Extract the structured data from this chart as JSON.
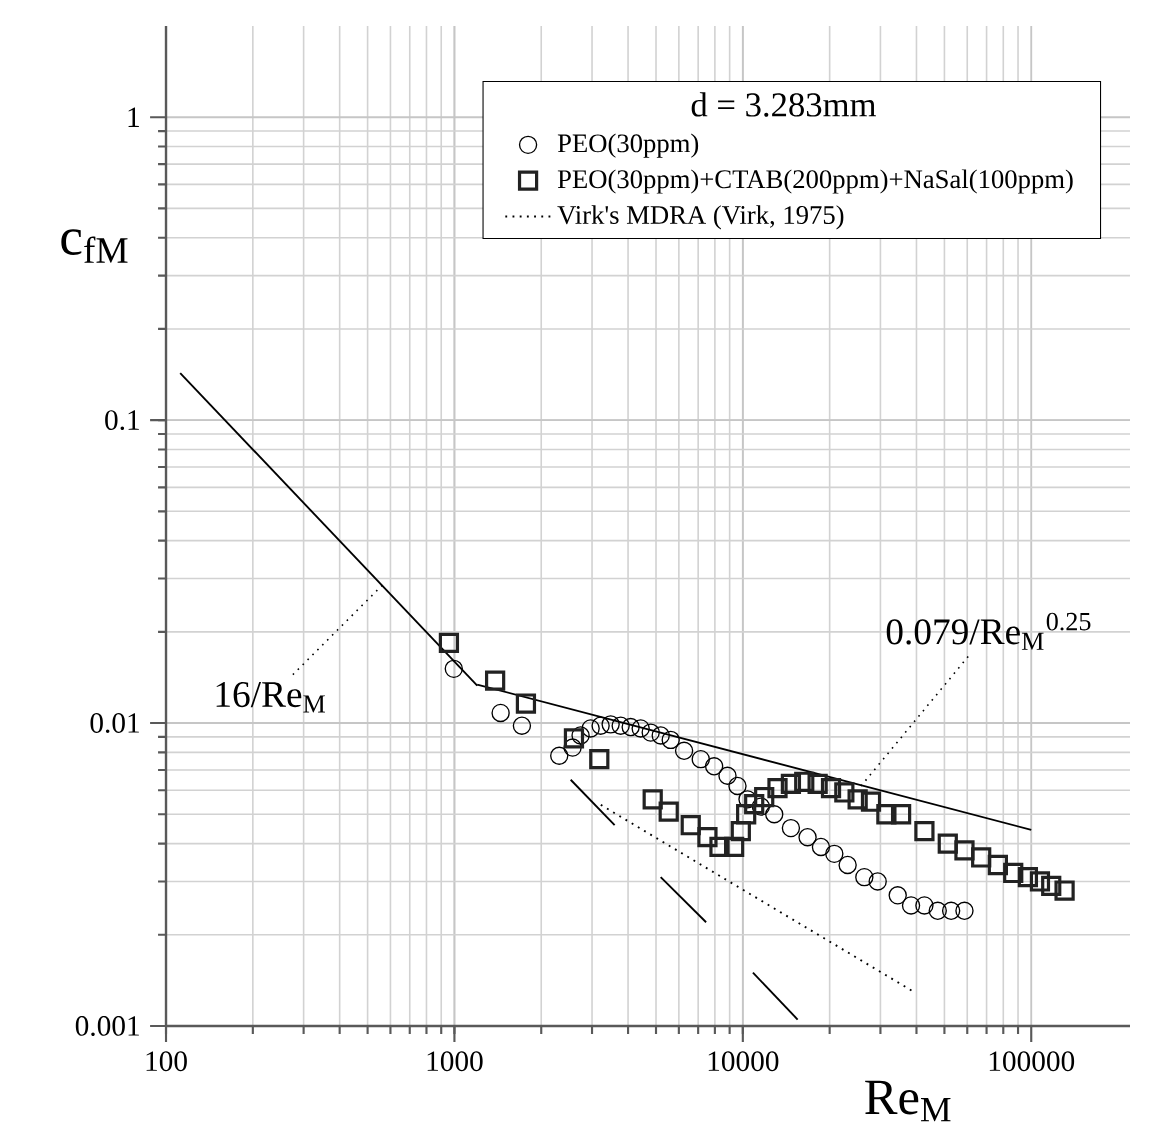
{
  "chart_data": {
    "type": "scatter",
    "xlabel": "Re$_{M}$",
    "ylabel": "c$_{fM}$",
    "legend_title": "d = 3.283mm",
    "log": "xy",
    "grid": true,
    "legend": "top right",
    "xlim": [
      100,
      220000
    ],
    "ylim": [
      0.001,
      2
    ],
    "xticks": [
      100,
      1000,
      10000,
      100000
    ],
    "yticks": [
      0.001,
      0.01,
      0.1,
      1
    ],
    "series": [
      {
        "name": "PEO(30ppm)",
        "marker": "circle",
        "color": "#000000",
        "x": [
          995,
          1446,
          1714,
          2309,
          2569,
          2738,
          2967,
          3213,
          3481,
          3771,
          4084,
          4424,
          4793,
          5192,
          5623,
          6257,
          7148,
          7952,
          8847,
          9583,
          10380,
          11550,
          12850,
          14680,
          16770,
          18660,
          20760,
          23090,
          26380,
          29350,
          34440,
          38310,
          42620,
          47410,
          52760,
          58680
        ],
        "values": [
          0.0151,
          0.0108,
          0.0098,
          0.0078,
          0.0083,
          0.0091,
          0.0096,
          0.0098,
          0.0099,
          0.0098,
          0.0097,
          0.0096,
          0.0093,
          0.0091,
          0.0088,
          0.0081,
          0.0076,
          0.0072,
          0.0067,
          0.0062,
          0.0056,
          0.0053,
          0.005,
          0.0045,
          0.0042,
          0.0039,
          0.0037,
          0.0034,
          0.0031,
          0.003,
          0.0027,
          0.0025,
          0.0025,
          0.0024,
          0.0024,
          0.0024
        ]
      },
      {
        "name": "PEO(30ppm)+CTAB(200ppm)+NaSal(100ppm)",
        "marker": "square",
        "color": "#222222",
        "x": [
          957,
          1384,
          1770,
          2597,
          3179,
          4870,
          5534,
          6598,
          7540,
          8300,
          9330,
          9840,
          10270,
          10950,
          11860,
          13190,
          14680,
          16330,
          18170,
          20220,
          22490,
          25010,
          27820,
          31460,
          35380,
          42620,
          51360,
          58680,
          67060,
          76620,
          86600,
          97360,
          107200,
          117300,
          130500
        ],
        "values": [
          0.0184,
          0.0138,
          0.0116,
          0.0089,
          0.0076,
          0.0056,
          0.0051,
          0.0046,
          0.0042,
          0.0039,
          0.0039,
          0.0044,
          0.005,
          0.0054,
          0.0057,
          0.0061,
          0.0063,
          0.0064,
          0.0063,
          0.0061,
          0.0059,
          0.0056,
          0.0055,
          0.005,
          0.005,
          0.0044,
          0.004,
          0.0038,
          0.0036,
          0.0034,
          0.0032,
          0.0031,
          0.003,
          0.0029,
          0.0028
        ]
      },
      {
        "name": "Virk's MDRA (Virk, 1975)",
        "type": "line",
        "line_style": "dotted",
        "color": "#000000",
        "x": [
          3218,
          39500
        ],
        "values": [
          0.00537,
          0.00129
        ]
      },
      {
        "type": "line",
        "line_style": "solid",
        "color": "#000000",
        "x": [
          112,
          1200
        ],
        "values": [
          0.143,
          0.0133
        ]
      },
      {
        "type": "line",
        "line_style": "solid",
        "color": "#000000",
        "x": [
          1200,
          100000
        ],
        "values": [
          0.0134,
          0.00444
        ]
      },
      {
        "type": "line",
        "line_style": "solid",
        "color": "#000000",
        "x": [
          2530,
          3594
        ],
        "values": [
          0.0065,
          0.0046
        ]
      },
      {
        "type": "line",
        "line_style": "solid",
        "color": "#000000",
        "x": [
          5190,
          7460
        ],
        "values": [
          0.0031,
          0.0022
        ]
      },
      {
        "type": "line",
        "line_style": "solid",
        "color": "#000000",
        "x": [
          10840,
          15490
        ],
        "values": [
          0.0015,
          0.00105
        ]
      }
    ],
    "annotations": [
      {
        "text": "16/Re$_{M}$",
        "x": 562,
        "y": 0.0285
      },
      {
        "text": "0.079/Re$_{M}$$^{0.25}$",
        "x": 25700,
        "y": 0.0062
      }
    ]
  }
}
